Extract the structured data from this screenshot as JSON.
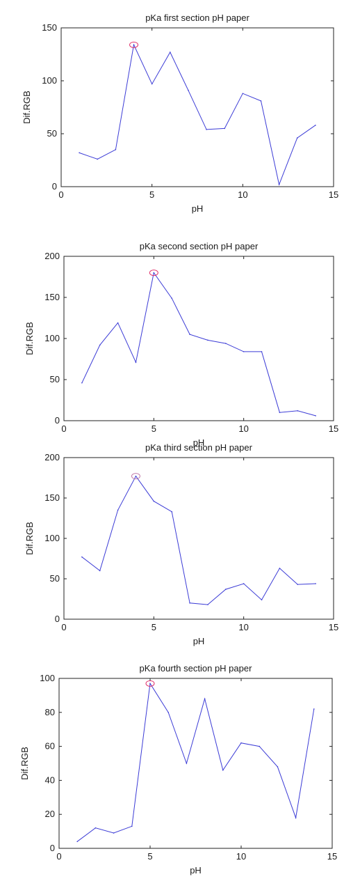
{
  "chart_data": [
    {
      "type": "line",
      "title": "pKa first section pH paper",
      "xlabel": "pH",
      "ylabel": "Dif.RGB",
      "xlim": [
        0,
        15
      ],
      "ylim": [
        0,
        150
      ],
      "xticks": [
        "0",
        "5",
        "10",
        "15"
      ],
      "yticks": [
        "0",
        "50",
        "100",
        "150"
      ],
      "grid": false,
      "line_color": "#3b3bd6",
      "marker_color": "#e0306a",
      "x": [
        1,
        2,
        3,
        4,
        5,
        6,
        7,
        8,
        9,
        10,
        11,
        12,
        13,
        14
      ],
      "values": [
        32,
        26,
        35,
        134,
        97,
        127,
        91,
        54,
        55,
        88,
        81,
        2,
        46,
        58
      ],
      "peak": {
        "x": 4,
        "y": 134
      }
    },
    {
      "type": "line",
      "title": "pKa second section pH paper",
      "xlabel": "pH",
      "ylabel": "Dif.RGB",
      "xlim": [
        0,
        15
      ],
      "ylim": [
        0,
        200
      ],
      "xticks": [
        "0",
        "5",
        "10",
        "15"
      ],
      "yticks": [
        "0",
        "50",
        "100",
        "150",
        "200"
      ],
      "grid": false,
      "line_color": "#3b3bd6",
      "marker_color": "#e0306a",
      "x": [
        1,
        2,
        3,
        4,
        5,
        6,
        7,
        8,
        9,
        10,
        11,
        12,
        13,
        14
      ],
      "values": [
        46,
        92,
        119,
        71,
        180,
        149,
        105,
        98,
        94,
        84,
        84,
        10,
        12,
        6
      ],
      "peak": {
        "x": 5,
        "y": 180
      }
    },
    {
      "type": "line",
      "title": "pKa third section pH paper",
      "xlabel": "pH",
      "ylabel": "Dif.RGB",
      "xlim": [
        0,
        15
      ],
      "ylim": [
        0,
        200
      ],
      "xticks": [
        "0",
        "5",
        "10",
        "15"
      ],
      "yticks": [
        "0",
        "50",
        "100",
        "150",
        "200"
      ],
      "grid": false,
      "line_color": "#3b3bd6",
      "marker_color": "#c07aa8",
      "x": [
        1,
        2,
        3,
        4,
        5,
        6,
        7,
        8,
        9,
        10,
        11,
        12,
        13,
        14
      ],
      "values": [
        77,
        60,
        135,
        177,
        146,
        133,
        20,
        18,
        37,
        44,
        24,
        63,
        43,
        44
      ],
      "peak": {
        "x": 4,
        "y": 177
      }
    },
    {
      "type": "line",
      "title": "pKa fourth section pH paper",
      "xlabel": "pH",
      "ylabel": "Dif.RGB",
      "xlim": [
        0,
        15
      ],
      "ylim": [
        0,
        100
      ],
      "xticks": [
        "0",
        "5",
        "10",
        "15"
      ],
      "yticks": [
        "0",
        "20",
        "40",
        "60",
        "80",
        "100"
      ],
      "grid": false,
      "line_color": "#3b3bd6",
      "marker_color": "#e0306a",
      "x": [
        1,
        2,
        3,
        4,
        5,
        6,
        7,
        8,
        9,
        10,
        11,
        12,
        13,
        14
      ],
      "values": [
        4,
        12,
        9,
        13,
        97,
        80,
        50,
        88,
        46,
        62,
        60,
        48,
        18,
        82
      ],
      "peak": {
        "x": 5,
        "y": 97
      }
    }
  ]
}
